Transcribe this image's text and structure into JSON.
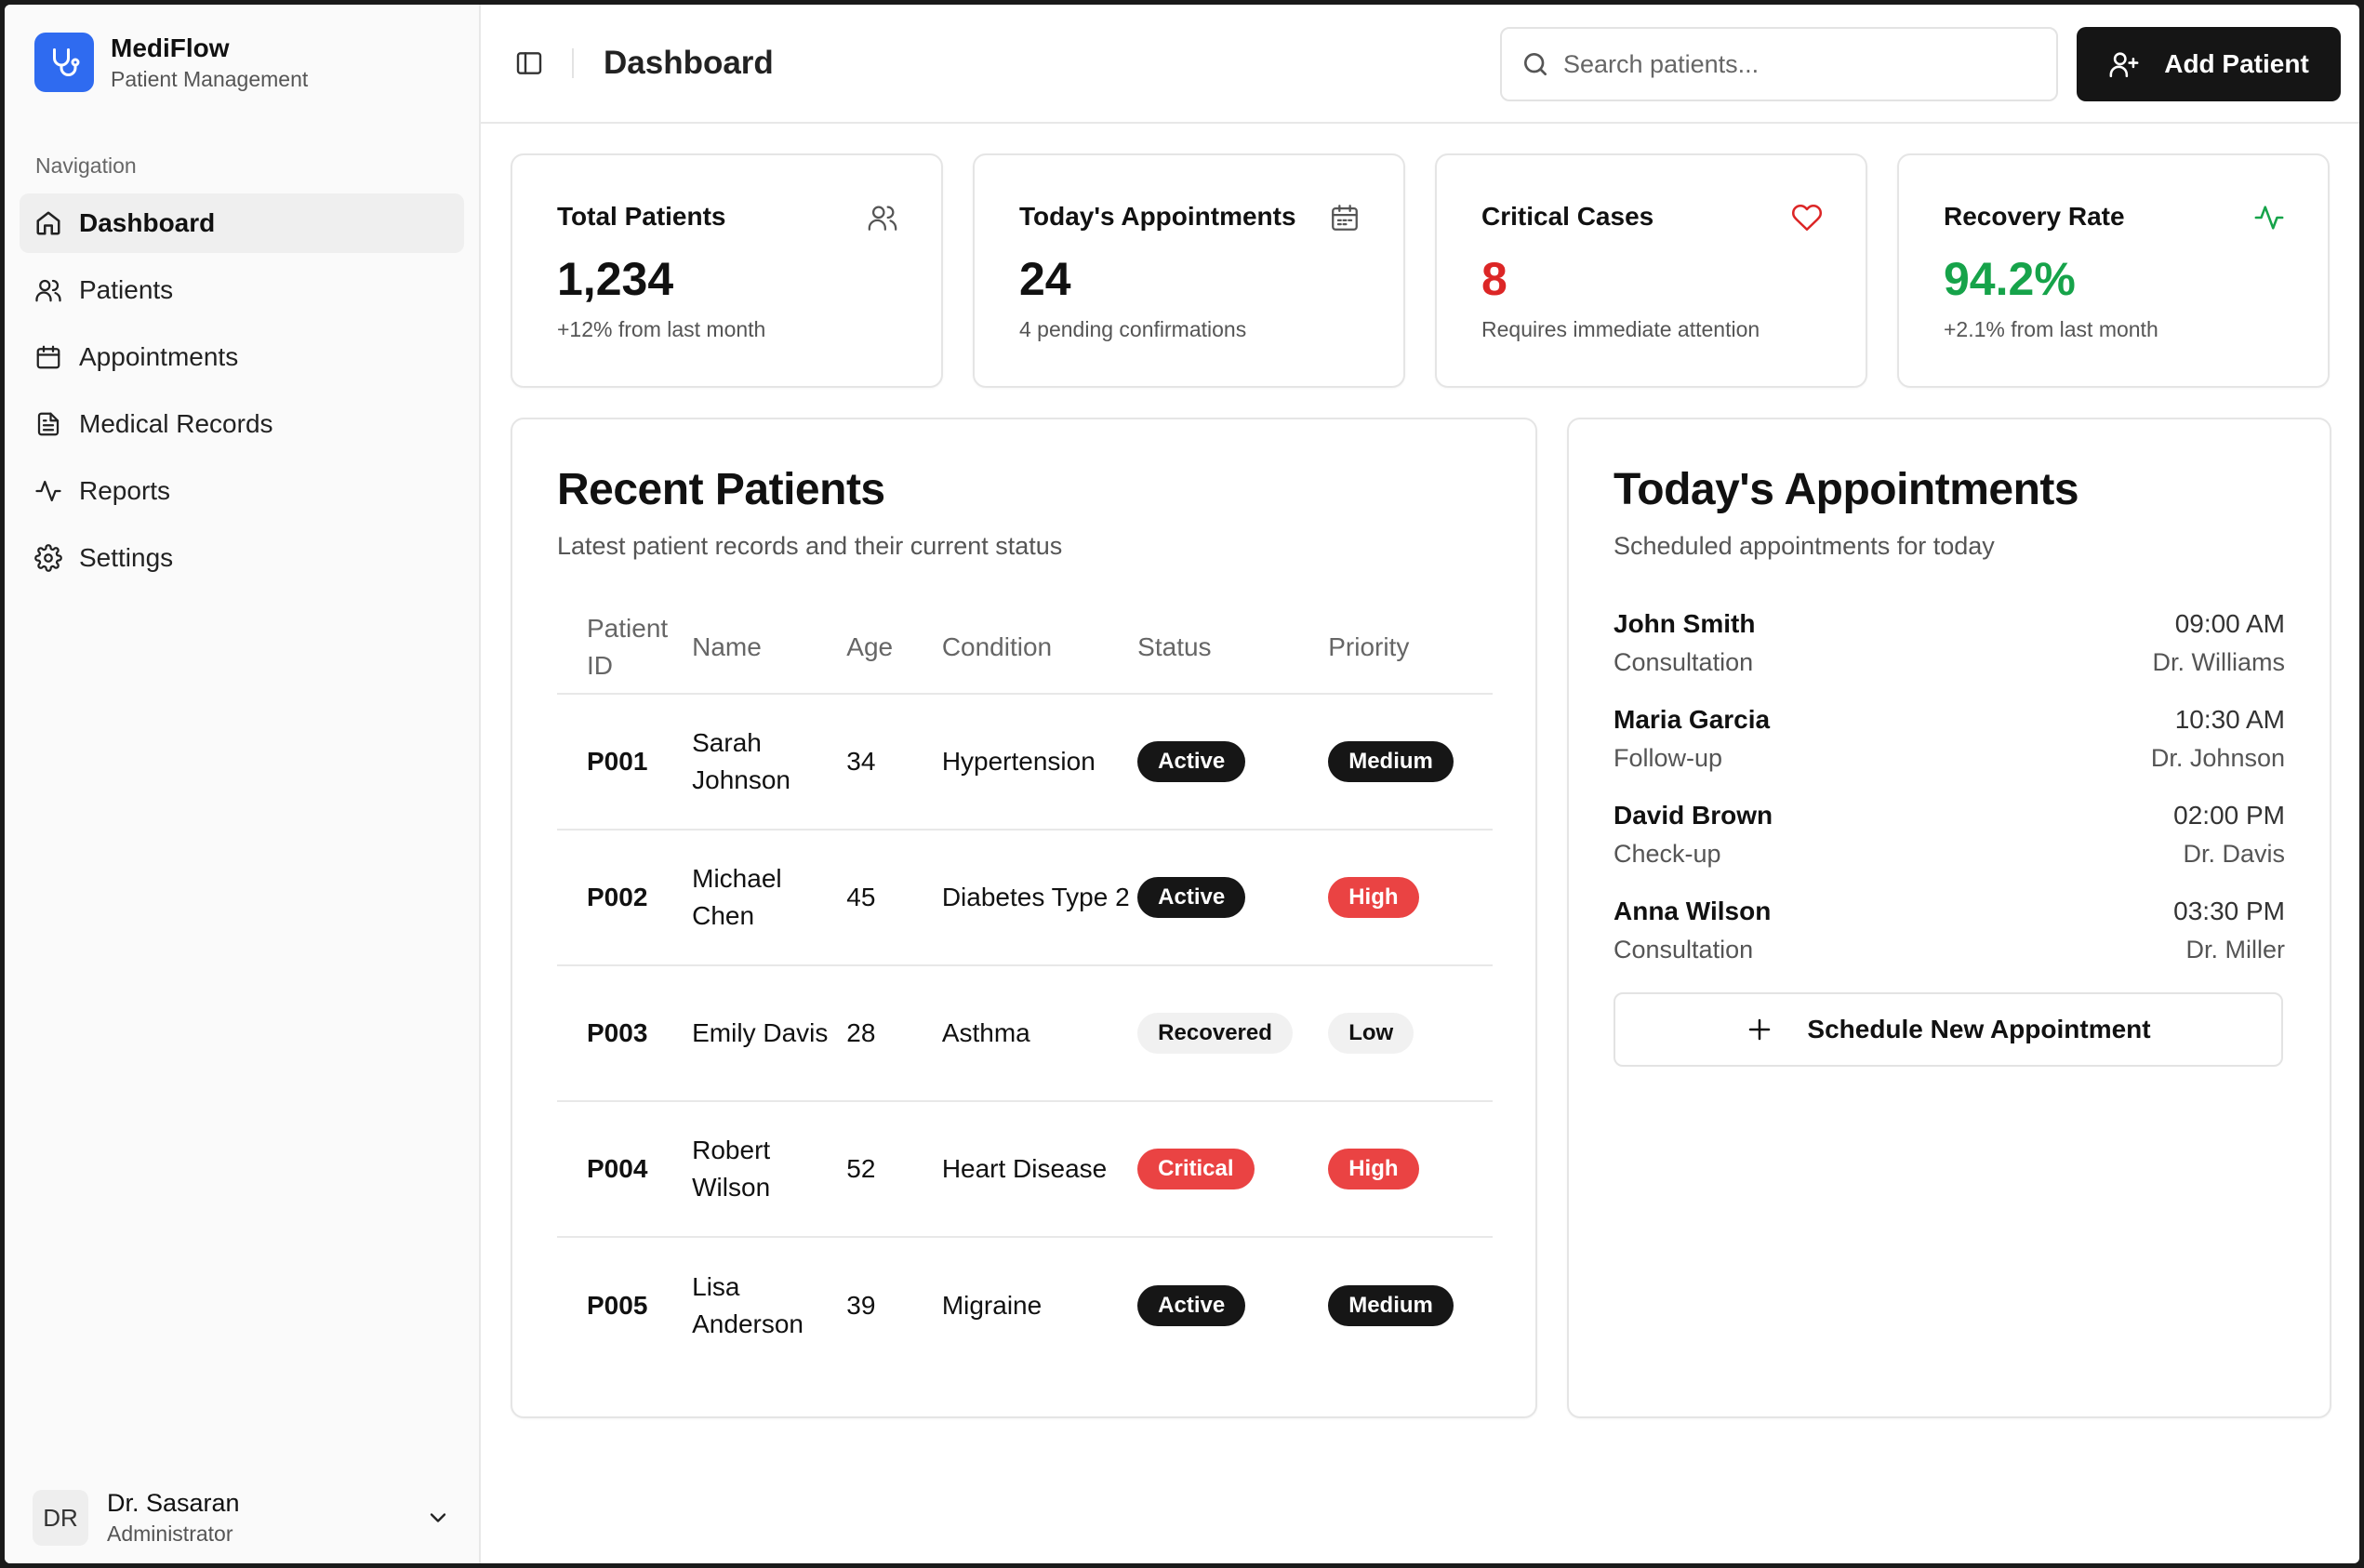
{
  "brand": {
    "name": "MediFlow",
    "subtitle": "Patient Management"
  },
  "nav": {
    "heading": "Navigation",
    "items": [
      {
        "label": "Dashboard",
        "icon": "home-icon",
        "active": true
      },
      {
        "label": "Patients",
        "icon": "users-icon"
      },
      {
        "label": "Appointments",
        "icon": "calendar-icon"
      },
      {
        "label": "Medical Records",
        "icon": "file-text-icon"
      },
      {
        "label": "Reports",
        "icon": "activity-icon"
      },
      {
        "label": "Settings",
        "icon": "gear-icon"
      }
    ]
  },
  "user": {
    "initials": "DR",
    "name": "Dr. Sasaran",
    "role": "Administrator"
  },
  "header": {
    "title": "Dashboard",
    "search_placeholder": "Search patients...",
    "add_label": "Add Patient"
  },
  "stats": [
    {
      "title": "Total Patients",
      "value": "1,234",
      "sub": "+12% from last month",
      "icon": "users-icon",
      "color": "#111111"
    },
    {
      "title": "Today's Appointments",
      "value": "24",
      "sub": "4 pending confirmations",
      "icon": "calendar-icon",
      "color": "#111111"
    },
    {
      "title": "Critical Cases",
      "value": "8",
      "sub": "Requires immediate attention",
      "icon": "heart-icon",
      "color": "#dc2626"
    },
    {
      "title": "Recovery Rate",
      "value": "94.2%",
      "sub": "+2.1% from last month",
      "icon": "activity-icon",
      "color": "#16a34a"
    }
  ],
  "recent": {
    "title": "Recent Patients",
    "subtitle": "Latest patient records and their current status",
    "columns": {
      "id": "Patient ID",
      "name": "Name",
      "age": "Age",
      "condition": "Condition",
      "status": "Status",
      "priority": "Priority"
    },
    "rows": [
      {
        "id": "P001",
        "name": "Sarah Johnson",
        "age": "34",
        "condition": "Hypertension",
        "status": "Active",
        "priority": "Medium"
      },
      {
        "id": "P002",
        "name": "Michael Chen",
        "age": "45",
        "condition": "Diabetes Type 2",
        "status": "Active",
        "priority": "High"
      },
      {
        "id": "P003",
        "name": "Emily Davis",
        "age": "28",
        "condition": "Asthma",
        "status": "Recovered",
        "priority": "Low"
      },
      {
        "id": "P004",
        "name": "Robert Wilson",
        "age": "52",
        "condition": "Heart Disease",
        "status": "Critical",
        "priority": "High"
      },
      {
        "id": "P005",
        "name": "Lisa Anderson",
        "age": "39",
        "condition": "Migraine",
        "status": "Active",
        "priority": "Medium"
      }
    ]
  },
  "appointments": {
    "title": "Today's Appointments",
    "subtitle": "Scheduled appointments for today",
    "items": [
      {
        "patient": "John Smith",
        "type": "Consultation",
        "time": "09:00 AM",
        "doctor": "Dr. Williams"
      },
      {
        "patient": "Maria Garcia",
        "type": "Follow-up",
        "time": "10:30 AM",
        "doctor": "Dr. Johnson"
      },
      {
        "patient": "David Brown",
        "type": "Check-up",
        "time": "02:00 PM",
        "doctor": "Dr. Davis"
      },
      {
        "patient": "Anna Wilson",
        "type": "Consultation",
        "time": "03:30 PM",
        "doctor": "Dr. Miller"
      }
    ],
    "schedule_label": "Schedule New Appointment"
  }
}
